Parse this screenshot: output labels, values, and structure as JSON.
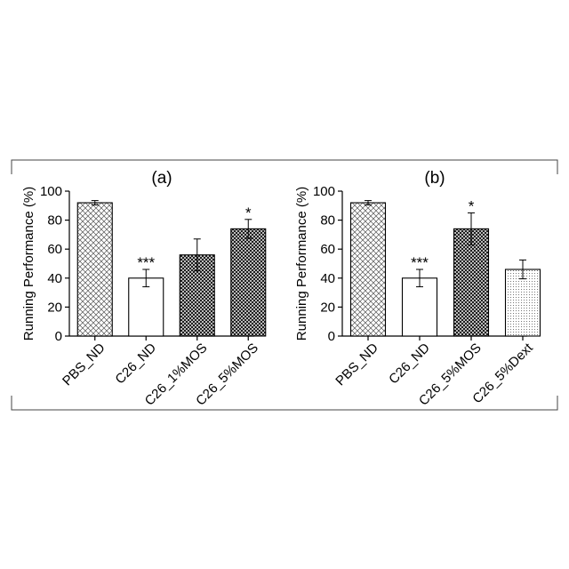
{
  "chart_data": [
    {
      "type": "bar",
      "title": "(a)",
      "ylabel": "Running Performance (%)",
      "xlabel": "",
      "ylim": [
        0,
        100
      ],
      "yticks": [
        "0",
        "20",
        "40",
        "60",
        "80",
        "100"
      ],
      "categories": [
        "PBS_ND",
        "C26_ND",
        "C26_1%MOS",
        "C26_5%MOS"
      ],
      "values": [
        92,
        40,
        56,
        74
      ],
      "errors": [
        1.5,
        6,
        11,
        6.5
      ],
      "significance": [
        "",
        "***",
        "",
        "*"
      ],
      "patterns": [
        "light-crosshatch",
        "white",
        "dense-crosshatch",
        "dense-crosshatch"
      ]
    },
    {
      "type": "bar",
      "title": "(b)",
      "ylabel": "Running Performance (%)",
      "xlabel": "",
      "ylim": [
        0,
        100
      ],
      "yticks": [
        "0",
        "20",
        "40",
        "60",
        "80",
        "100"
      ],
      "categories": [
        "PBS_ND",
        "C26_ND",
        "C26_5%MOS",
        "C26_5%Dext"
      ],
      "values": [
        92,
        40,
        74,
        46
      ],
      "errors": [
        1.5,
        6,
        11,
        6.5
      ],
      "significance": [
        "",
        "***",
        "*",
        ""
      ],
      "patterns": [
        "light-crosshatch",
        "white",
        "dense-crosshatch",
        "dots"
      ]
    }
  ]
}
